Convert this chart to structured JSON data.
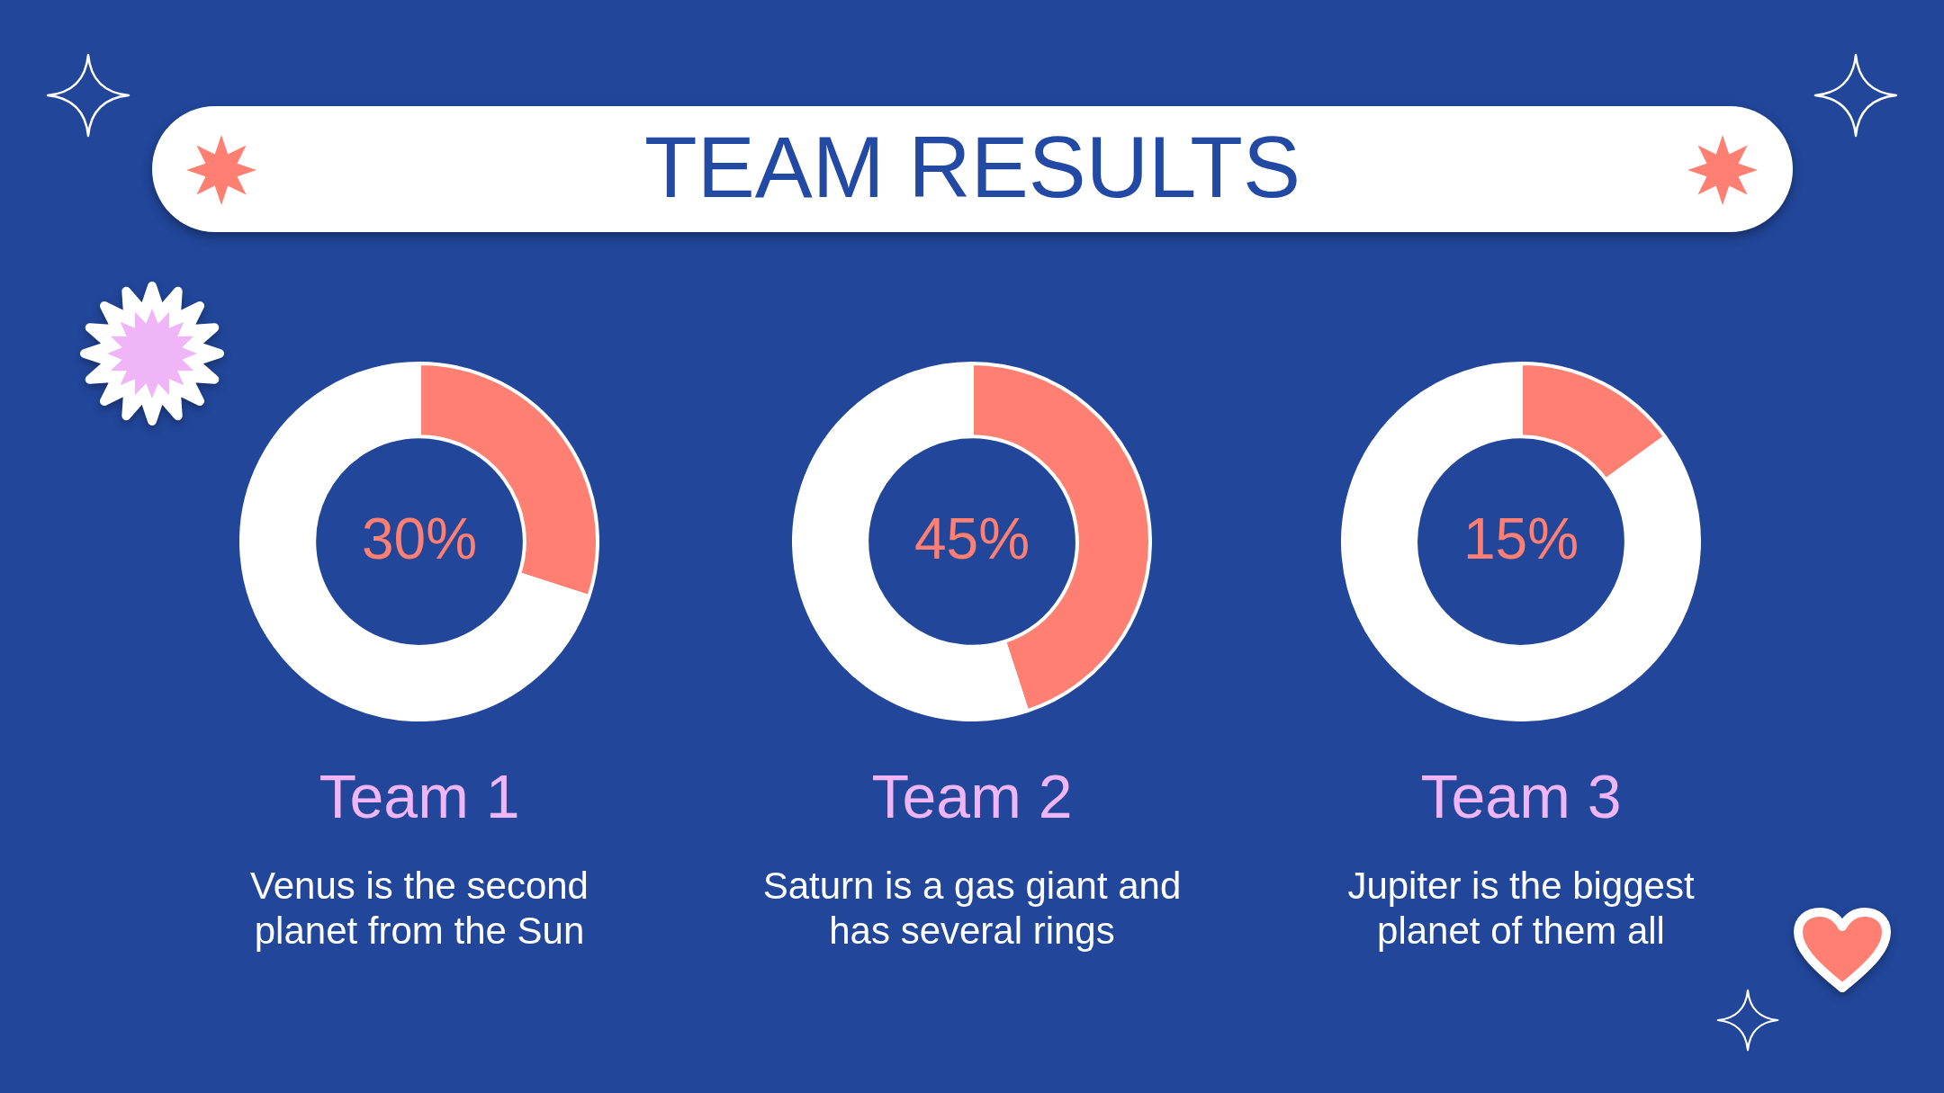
{
  "chart_data": [
    {
      "type": "other",
      "title": "TEAM RESULTS"
    },
    {
      "type": "donut",
      "title": "Team 1",
      "categories": [
        null,
        null
      ],
      "values": [
        30,
        70
      ],
      "colors": [
        "#ff7f72",
        "#ffffff"
      ],
      "annotations": [
        "30%",
        "Venus is the second planet from the Sun"
      ]
    },
    {
      "type": "donut",
      "title": "Team 2",
      "categories": [
        null,
        null
      ],
      "values": [
        45,
        55
      ],
      "colors": [
        "#ff7f72",
        "#ffffff"
      ],
      "annotations": [
        "45%",
        "Saturn is a gas giant and has several rings"
      ]
    },
    {
      "type": "donut",
      "title": "Team 3",
      "categories": [
        null,
        null
      ],
      "values": [
        15,
        85
      ],
      "colors": [
        "#ff7f72",
        "#ffffff"
      ],
      "annotations": [
        "15%",
        "Jupiter is the biggest planet of them all"
      ]
    }
  ]
}
